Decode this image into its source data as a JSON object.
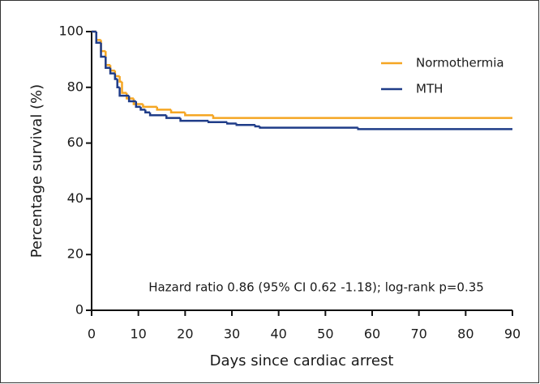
{
  "chart_data": {
    "type": "line",
    "step": "post",
    "x_label": "Days since cardiac arrest",
    "y_label": "Percentage survival (%)",
    "annotation": "Hazard ratio 0.86 (95% CI 0.62 -1.18); log-rank p=0.35",
    "xlim": [
      0,
      90
    ],
    "ylim": [
      0,
      100
    ],
    "xticks": [
      0,
      10,
      20,
      30,
      40,
      50,
      60,
      70,
      80,
      90
    ],
    "yticks": [
      0,
      20,
      40,
      60,
      80,
      100
    ],
    "grid": false,
    "legend": "top-right",
    "series": [
      {
        "name": "Normothermia",
        "color": "#f5a623",
        "x": [
          0,
          1,
          2,
          3,
          4,
          5,
          6,
          6.5,
          7.5,
          9,
          11,
          14,
          17,
          20,
          26,
          90
        ],
        "values": [
          100,
          97,
          93,
          88,
          86,
          84,
          82,
          78,
          76,
          74,
          73,
          72,
          71,
          70,
          69,
          69
        ]
      },
      {
        "name": "MTH",
        "color": "#1f3c88",
        "x": [
          0,
          1,
          2,
          3,
          4,
          5,
          5.5,
          6,
          8,
          9.5,
          10.5,
          11.5,
          12.5,
          16,
          19,
          25,
          29,
          31,
          35,
          36,
          57,
          90
        ],
        "values": [
          100,
          96,
          91,
          87,
          85,
          83,
          80,
          77,
          75,
          73,
          72,
          71,
          70,
          69,
          68,
          67.5,
          67,
          66.5,
          66,
          65.5,
          65,
          65
        ]
      }
    ]
  }
}
